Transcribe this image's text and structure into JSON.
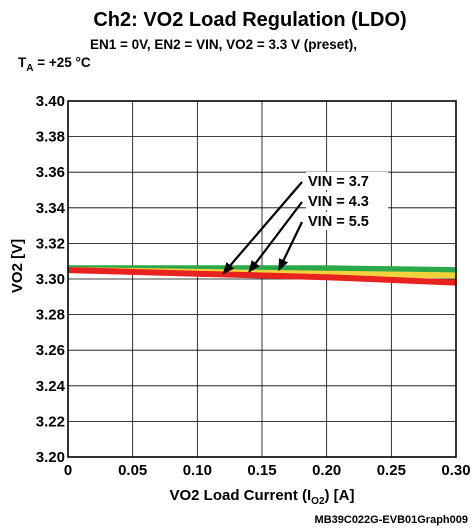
{
  "chart_data": {
    "type": "line",
    "title": "Ch2: VO2 Load Regulation (LDO)",
    "subtitle_line1": "EN1 = 0V, EN2 = VIN, VO2 = 3.3 V (preset),",
    "subtitle_line2": {
      "prefix": "T",
      "subscript": "A",
      "suffix": " = +25 °C"
    },
    "xlabel": {
      "prefix": "VO2 Load Current (I",
      "subscript": "O2",
      "suffix": ") [A]"
    },
    "ylabel": "VO2 [V]",
    "xlim": [
      0,
      0.3
    ],
    "ylim": [
      3.2,
      3.4
    ],
    "x_ticks": [
      0,
      0.05,
      0.1,
      0.15,
      0.2,
      0.25,
      0.3
    ],
    "x_tick_labels": [
      "0",
      "0.05",
      "0.10",
      "0.15",
      "0.20",
      "0.25",
      "0.30"
    ],
    "y_ticks": [
      3.2,
      3.22,
      3.24,
      3.26,
      3.28,
      3.3,
      3.32,
      3.34,
      3.36,
      3.38,
      3.4
    ],
    "y_tick_labels": [
      "3.20",
      "3.22",
      "3.24",
      "3.26",
      "3.28",
      "3.30",
      "3.32",
      "3.34",
      "3.36",
      "3.38",
      "3.40"
    ],
    "grid": true,
    "series": [
      {
        "name": "VIN = 5.5",
        "color": "#2aa84a",
        "x": [
          0,
          0.1,
          0.2,
          0.3
        ],
        "y": [
          3.306,
          3.306,
          3.306,
          3.305
        ]
      },
      {
        "name": "VIN = 4.3",
        "color": "#f2d23c",
        "x": [
          0,
          0.1,
          0.2,
          0.3
        ],
        "y": [
          3.305,
          3.304,
          3.303,
          3.302
        ]
      },
      {
        "name": "VIN = 3.7",
        "color": "#e8221e",
        "x": [
          0,
          0.1,
          0.2,
          0.3
        ],
        "y": [
          3.305,
          3.303,
          3.301,
          3.298
        ]
      }
    ],
    "annotations": [
      {
        "text": "VIN = 3.7",
        "arrow_to": [
          0.12,
          3.303
        ]
      },
      {
        "text": "VIN = 4.3",
        "arrow_to": [
          0.14,
          3.304
        ]
      },
      {
        "text": "VIN = 5.5",
        "arrow_to": [
          0.163,
          3.305
        ]
      }
    ],
    "source_label": "MB39C022G-EVB01Graph009"
  }
}
